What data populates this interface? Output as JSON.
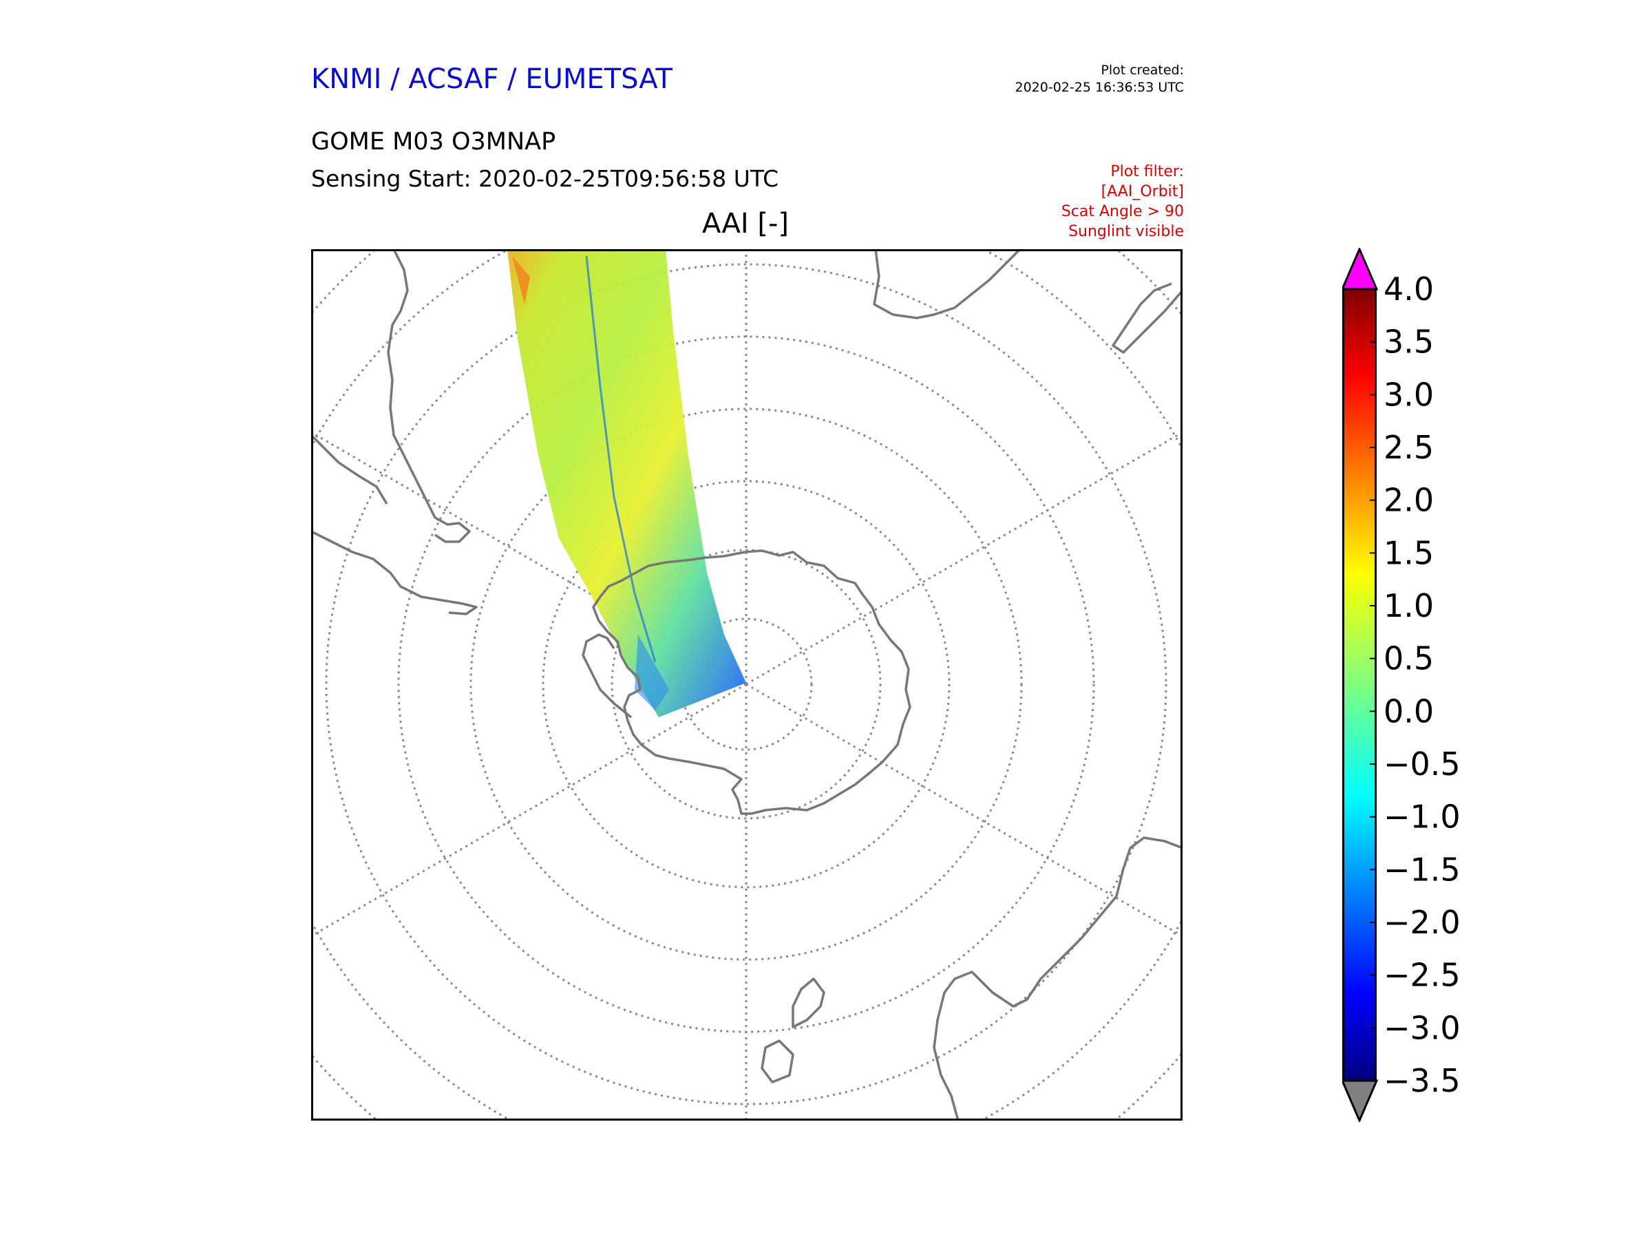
{
  "header": {
    "org": "KNMI / ACSAF / EUMETSAT",
    "plot_created_label": "Plot created:",
    "plot_created_time": "2020-02-25 16:36:53 UTC",
    "product": "GOME M03 O3MNAP",
    "sensing_start": "Sensing Start: 2020-02-25T09:56:58 UTC",
    "map_title": "AAI [-]"
  },
  "filter": {
    "title": "Plot filter:",
    "lines": [
      "[AAI_Orbit]",
      "Scat Angle > 90",
      "Sunglint visible"
    ]
  },
  "colorbar": {
    "variable": "AAI",
    "min": -3.5,
    "max": 4.0,
    "ticks": [
      "4.0",
      "3.5",
      "3.0",
      "2.5",
      "2.0",
      "1.5",
      "1.0",
      "0.5",
      "0.0",
      "−0.5",
      "−1.0",
      "−1.5",
      "−2.0",
      "−2.5",
      "−3.0",
      "−3.5"
    ],
    "over_color": "#ff00ff",
    "under_color": "#808080"
  },
  "colors": {
    "org_blue": "#0b0bd9",
    "filter_red": "#e00000",
    "coast_gray": "#777777",
    "grid_gray": "#888888"
  }
}
